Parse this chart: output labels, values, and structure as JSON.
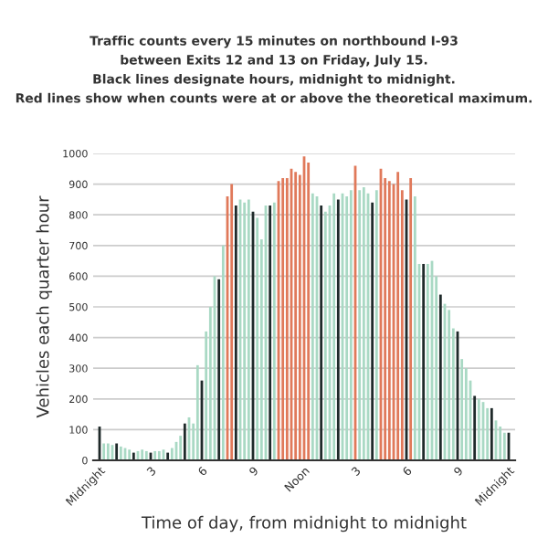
{
  "chart_data": {
    "type": "bar",
    "title": "Traffic counts every 15 minutes on northbound I-93\nbetween Exits 12 and 13 on Friday, July 15.\nBlack lines designate hours, midnight to midnight.\nRed lines show when counts were at or above the theoretical maximum.",
    "xlabel": "Time of day, from midnight to midnight",
    "ylabel": "Vehicles each quarter hour",
    "categories": [
      "Midnight",
      null,
      null,
      null,
      null,
      null,
      null,
      null,
      null,
      null,
      null,
      null,
      "3",
      null,
      null,
      null,
      null,
      null,
      null,
      null,
      null,
      null,
      null,
      null,
      "6",
      null,
      null,
      null,
      null,
      null,
      null,
      null,
      null,
      null,
      null,
      null,
      "9",
      null,
      null,
      null,
      null,
      null,
      null,
      null,
      null,
      null,
      null,
      null,
      "Noon",
      null,
      null,
      null,
      null,
      null,
      null,
      null,
      null,
      null,
      null,
      null,
      "3",
      null,
      null,
      null,
      null,
      null,
      null,
      null,
      null,
      null,
      null,
      null,
      "6",
      null,
      null,
      null,
      null,
      null,
      null,
      null,
      null,
      null,
      null,
      null,
      "9",
      null,
      null,
      null,
      null,
      null,
      null,
      null,
      null,
      null,
      null,
      null,
      "Midnight"
    ],
    "values": [
      110,
      55,
      55,
      50,
      55,
      45,
      40,
      35,
      25,
      30,
      35,
      30,
      25,
      30,
      30,
      35,
      25,
      40,
      60,
      80,
      120,
      140,
      120,
      310,
      260,
      420,
      500,
      600,
      590,
      700,
      860,
      900,
      830,
      850,
      840,
      850,
      810,
      790,
      720,
      830,
      830,
      840,
      910,
      920,
      920,
      950,
      940,
      930,
      990,
      970,
      870,
      860,
      830,
      810,
      830,
      870,
      850,
      870,
      860,
      880,
      960,
      880,
      890,
      870,
      840,
      880,
      950,
      920,
      910,
      900,
      940,
      880,
      850,
      920,
      860,
      640,
      640,
      640,
      650,
      600,
      540,
      510,
      490,
      430,
      420,
      330,
      300,
      260,
      210,
      200,
      190,
      170,
      170,
      130,
      110,
      90,
      90
    ],
    "colors": [
      "#1f2a2a",
      "#a9d9c4",
      "#a9d9c4",
      "#a9d9c4",
      "#1f2a2a",
      "#a9d9c4",
      "#a9d9c4",
      "#a9d9c4",
      "#1f2a2a",
      "#a9d9c4",
      "#a9d9c4",
      "#a9d9c4",
      "#1f2a2a",
      "#a9d9c4",
      "#a9d9c4",
      "#a9d9c4",
      "#1f2a2a",
      "#a9d9c4",
      "#a9d9c4",
      "#a9d9c4",
      "#1f2a2a",
      "#a9d9c4",
      "#a9d9c4",
      "#a9d9c4",
      "#1f2a2a",
      "#a9d9c4",
      "#a9d9c4",
      "#a9d9c4",
      "#1f2a2a",
      "#a9d9c4",
      "#e0795a",
      "#e0795a",
      "#1f2a2a",
      "#a9d9c4",
      "#a9d9c4",
      "#a9d9c4",
      "#1f2a2a",
      "#a9d9c4",
      "#a9d9c4",
      "#a9d9c4",
      "#1f2a2a",
      "#a9d9c4",
      "#e0795a",
      "#e0795a",
      "#e0795a",
      "#e0795a",
      "#e0795a",
      "#e0795a",
      "#e0795a",
      "#e0795a",
      "#a9d9c4",
      "#a9d9c4",
      "#1f2a2a",
      "#a9d9c4",
      "#a9d9c4",
      "#a9d9c4",
      "#1f2a2a",
      "#a9d9c4",
      "#a9d9c4",
      "#a9d9c4",
      "#e0795a",
      "#a9d9c4",
      "#a9d9c4",
      "#a9d9c4",
      "#1f2a2a",
      "#a9d9c4",
      "#e0795a",
      "#e0795a",
      "#e0795a",
      "#e0795a",
      "#e0795a",
      "#e0795a",
      "#1f2a2a",
      "#e0795a",
      "#a9d9c4",
      "#a9d9c4",
      "#1f2a2a",
      "#a9d9c4",
      "#a9d9c4",
      "#a9d9c4",
      "#1f2a2a",
      "#a9d9c4",
      "#a9d9c4",
      "#a9d9c4",
      "#1f2a2a",
      "#a9d9c4",
      "#a9d9c4",
      "#a9d9c4",
      "#1f2a2a",
      "#a9d9c4",
      "#a9d9c4",
      "#a9d9c4",
      "#1f2a2a",
      "#a9d9c4",
      "#a9d9c4",
      "#a9d9c4",
      "#1f2a2a"
    ],
    "ylim": [
      0,
      1000
    ],
    "yticks": [
      0,
      100,
      200,
      300,
      400,
      500,
      600,
      700,
      800,
      900,
      1000
    ],
    "grid": "y"
  }
}
